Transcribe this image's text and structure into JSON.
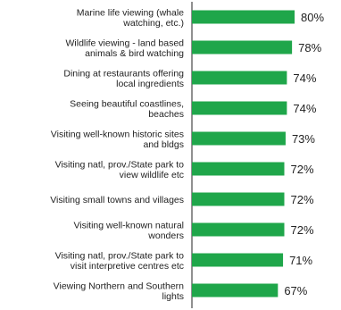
{
  "chart_data": {
    "type": "bar",
    "orientation": "horizontal",
    "categories": [
      [
        "Marine life viewing (whale",
        "watching, etc.)"
      ],
      [
        "Wildlife viewing - land based",
        "animals & bird watching"
      ],
      [
        "Dining at restaurants offering",
        "local ingredients"
      ],
      [
        "Seeing beautiful coastlines,",
        "beaches"
      ],
      [
        "Visiting well-known historic sites",
        "and bldgs"
      ],
      [
        "Visiting natl, prov./State park to",
        "view wildlife etc"
      ],
      [
        "Visiting small towns and villages"
      ],
      [
        "Visiting well-known natural",
        "wonders"
      ],
      [
        "Visiting natl, prov./State park to",
        "visit interpretive centres etc"
      ],
      [
        "Viewing Northern and Southern",
        "lights"
      ]
    ],
    "values": [
      80,
      78,
      74,
      74,
      73,
      72,
      72,
      72,
      71,
      67
    ],
    "value_labels": [
      "80%",
      "78%",
      "74%",
      "74%",
      "73%",
      "72%",
      "72%",
      "72%",
      "71%",
      "67%"
    ],
    "bar_color": "#1fa64a",
    "xlim": [
      0,
      80
    ],
    "grid": false,
    "legend": "none"
  }
}
